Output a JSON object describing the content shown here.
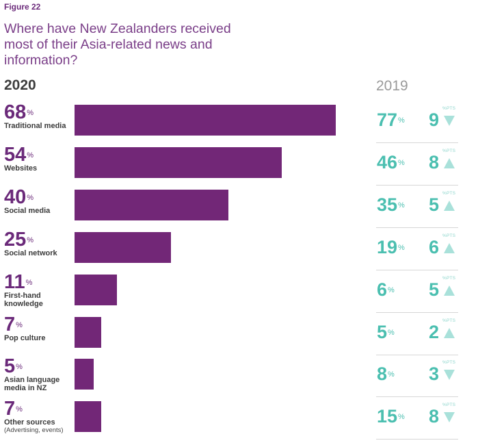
{
  "figure_label": "Figure 22",
  "chart_data": {
    "type": "bar",
    "orientation": "horizontal",
    "title": "Where have New Zealanders received most of their Asia-related news and information?",
    "current_year_label": "2020",
    "previous_year_label": "2019",
    "unit": "%",
    "change_unit": "%PTS",
    "xlim": [
      0,
      100
    ],
    "rows": [
      {
        "category": "Traditional media",
        "sublabel": "",
        "value": 68,
        "prev": 77,
        "change": 9,
        "direction": "down"
      },
      {
        "category": "Websites",
        "sublabel": "",
        "value": 54,
        "prev": 46,
        "change": 8,
        "direction": "up"
      },
      {
        "category": "Social media",
        "sublabel": "",
        "value": 40,
        "prev": 35,
        "change": 5,
        "direction": "up"
      },
      {
        "category": "Social network",
        "sublabel": "",
        "value": 25,
        "prev": 19,
        "change": 6,
        "direction": "up"
      },
      {
        "category": "First-hand knowledge",
        "sublabel": "",
        "value": 11,
        "prev": 6,
        "change": 5,
        "direction": "up"
      },
      {
        "category": "Pop culture",
        "sublabel": "",
        "value": 7,
        "prev": 5,
        "change": 2,
        "direction": "up"
      },
      {
        "category": "Asian language media in NZ",
        "sublabel": "",
        "value": 5,
        "prev": 8,
        "change": 3,
        "direction": "down"
      },
      {
        "category": "Other sources",
        "sublabel": "(Advertising, events)",
        "value": 7,
        "prev": 15,
        "change": 8,
        "direction": "down"
      }
    ],
    "colors": {
      "bar": "#722777",
      "current_text": "#6b2a7a",
      "previous_text": "#4bbfb0",
      "arrow": "#a9e1da"
    }
  }
}
